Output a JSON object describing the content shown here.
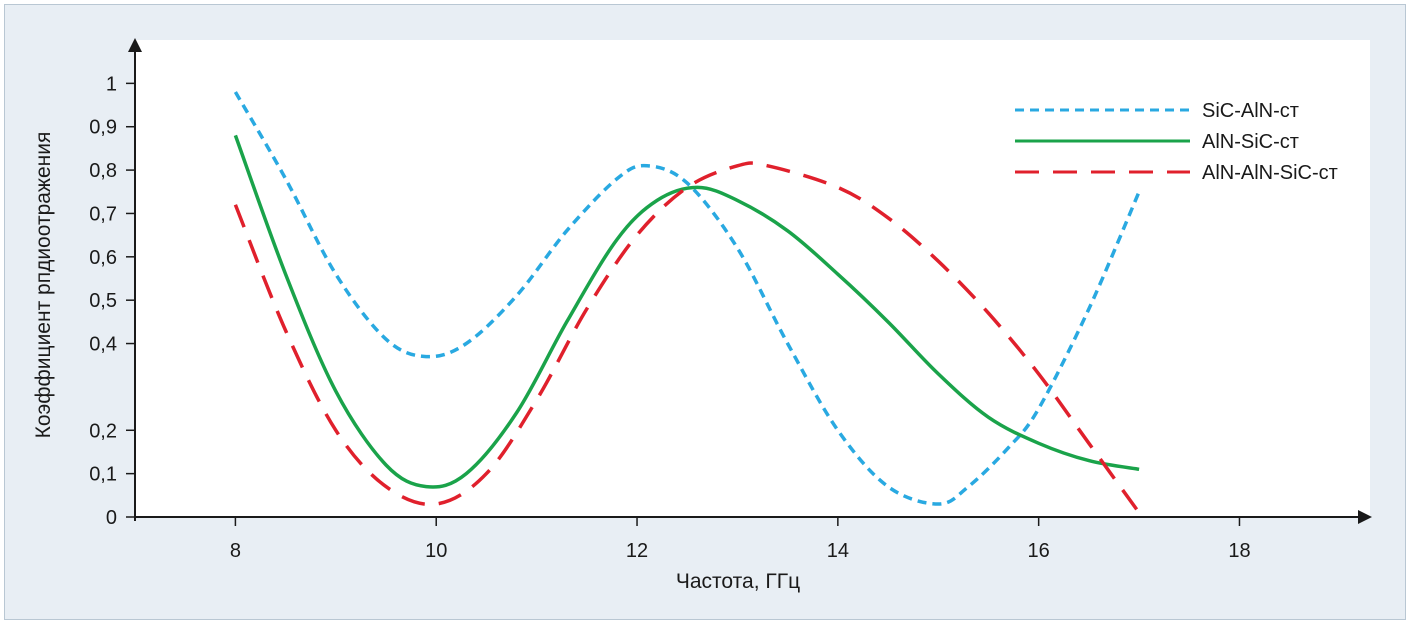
{
  "chart_data": {
    "type": "line",
    "title": "",
    "xlabel": "Частота, ГГц",
    "ylabel": "Коэффициент рпдиоотражения",
    "xlim": [
      7,
      19.3
    ],
    "ylim": [
      0,
      1.1
    ],
    "x_ticks": [
      8,
      10,
      12,
      14,
      16,
      18
    ],
    "x_tick_labels": [
      "8",
      "10",
      "12",
      "14",
      "16",
      "18"
    ],
    "y_ticks": [
      0,
      0.1,
      0.2,
      0.4,
      0.5,
      0.6,
      0.7,
      0.8,
      0.9,
      1
    ],
    "y_tick_labels": [
      "0",
      "0,1",
      "0,2",
      "0,4",
      "0,5",
      "0,6",
      "0,7",
      "0,8",
      "0,9",
      "1"
    ],
    "grid": false,
    "legend_position": "top-right",
    "series": [
      {
        "name": "SiC-AlN-ст",
        "color": "#29a9e1",
        "dash": "dotted-short",
        "x": [
          8,
          8.5,
          9,
          9.5,
          9.9,
          10.3,
          10.8,
          11.3,
          11.8,
          12.1,
          12.5,
          13,
          13.5,
          14,
          14.5,
          15,
          15.3,
          15.7,
          16,
          16.5,
          17
        ],
        "y": [
          0.98,
          0.78,
          0.56,
          0.41,
          0.37,
          0.4,
          0.51,
          0.66,
          0.78,
          0.81,
          0.77,
          0.62,
          0.4,
          0.2,
          0.07,
          0.03,
          0.07,
          0.16,
          0.25,
          0.48,
          0.75
        ]
      },
      {
        "name": "AlN-SiC-ст",
        "color": "#1aa34a",
        "dash": "solid",
        "x": [
          8,
          8.5,
          9,
          9.5,
          9.9,
          10.3,
          10.8,
          11.3,
          11.8,
          12.2,
          12.6,
          13,
          13.5,
          14,
          14.5,
          15,
          15.5,
          16,
          16.5,
          17
        ],
        "y": [
          0.88,
          0.56,
          0.29,
          0.12,
          0.07,
          0.1,
          0.24,
          0.45,
          0.64,
          0.73,
          0.76,
          0.73,
          0.66,
          0.56,
          0.45,
          0.33,
          0.23,
          0.17,
          0.13,
          0.11
        ]
      },
      {
        "name": "AlN-AlN-SiC-ст",
        "color": "#e0202c",
        "dash": "long-dash",
        "x": [
          8,
          8.5,
          9,
          9.5,
          10,
          10.5,
          11,
          11.5,
          12,
          12.5,
          13,
          13.3,
          14,
          14.5,
          15,
          15.5,
          16,
          16.5,
          17
        ],
        "y": [
          0.72,
          0.43,
          0.2,
          0.07,
          0.03,
          0.1,
          0.27,
          0.48,
          0.65,
          0.76,
          0.81,
          0.81,
          0.76,
          0.69,
          0.59,
          0.47,
          0.33,
          0.17,
          0.01
        ]
      }
    ]
  }
}
